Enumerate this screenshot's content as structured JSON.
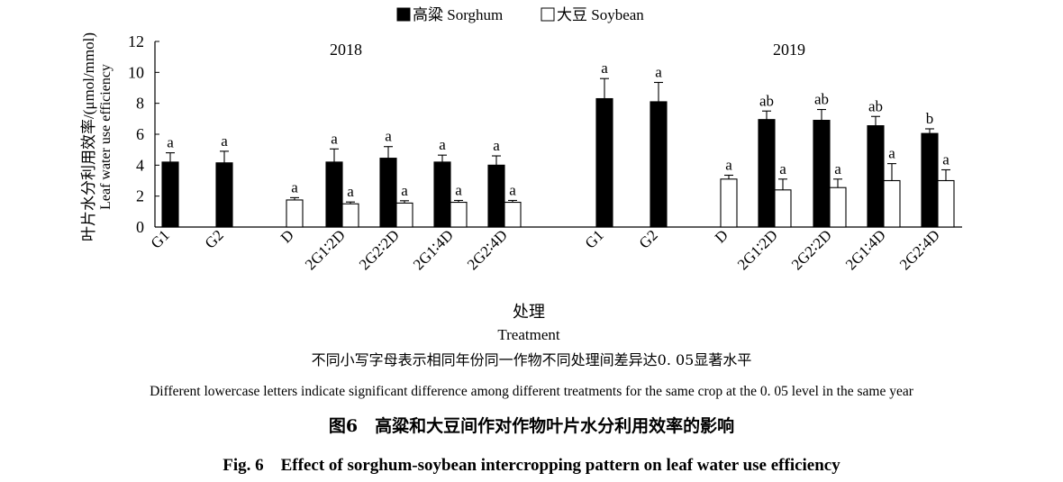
{
  "chart_data": {
    "type": "bar",
    "legend": {
      "position": "top-center",
      "items": [
        {
          "name": "高粱 Sorghum",
          "color": "#000000"
        },
        {
          "name": "大豆 Soybean",
          "color": "#ffffff"
        }
      ]
    },
    "ylabel_cn": "叶片水分利用效率/(μmol/mmol)",
    "ylabel_en": "Leaf water use efficiency",
    "xlabel_cn": "处理",
    "xlabel_en": "Treatment",
    "ylim": [
      0,
      12
    ],
    "yticks": [
      "0",
      "2",
      "4",
      "6",
      "8",
      "10",
      "12"
    ],
    "grid": false,
    "panels": [
      {
        "year": "2018",
        "groups": [
          {
            "label": "G1",
            "sorghum": {
              "value": 4.2,
              "err": 0.6,
              "letter": "a"
            },
            "soybean": null
          },
          {
            "label": "G2",
            "sorghum": {
              "value": 4.15,
              "err": 0.75,
              "letter": "a"
            },
            "soybean": null
          },
          {
            "label": "D",
            "sorghum": null,
            "soybean": {
              "value": 1.75,
              "err": 0.15,
              "letter": "a"
            }
          },
          {
            "label": "2G1∶2D",
            "sorghum": {
              "value": 4.2,
              "err": 0.85,
              "letter": "a"
            },
            "soybean": {
              "value": 1.5,
              "err": 0.12,
              "letter": "a"
            }
          },
          {
            "label": "2G2∶2D",
            "sorghum": {
              "value": 4.45,
              "err": 0.75,
              "letter": "a"
            },
            "soybean": {
              "value": 1.55,
              "err": 0.15,
              "letter": "a"
            }
          },
          {
            "label": "2G1∶4D",
            "sorghum": {
              "value": 4.2,
              "err": 0.45,
              "letter": "a"
            },
            "soybean": {
              "value": 1.6,
              "err": 0.12,
              "letter": "a"
            }
          },
          {
            "label": "2G2∶4D",
            "sorghum": {
              "value": 4.0,
              "err": 0.6,
              "letter": "a"
            },
            "soybean": {
              "value": 1.6,
              "err": 0.12,
              "letter": "a"
            }
          }
        ]
      },
      {
        "year": "2019",
        "groups": [
          {
            "label": "G1",
            "sorghum": {
              "value": 8.3,
              "err": 1.3,
              "letter": "a"
            },
            "soybean": null
          },
          {
            "label": "G2",
            "sorghum": {
              "value": 8.1,
              "err": 1.25,
              "letter": "a"
            },
            "soybean": null
          },
          {
            "label": "D",
            "sorghum": null,
            "soybean": {
              "value": 3.1,
              "err": 0.25,
              "letter": "a"
            }
          },
          {
            "label": "2G1∶2D",
            "sorghum": {
              "value": 6.95,
              "err": 0.55,
              "letter": "ab"
            },
            "soybean": {
              "value": 2.4,
              "err": 0.7,
              "letter": "a"
            }
          },
          {
            "label": "2G2∶2D",
            "sorghum": {
              "value": 6.9,
              "err": 0.7,
              "letter": "ab"
            },
            "soybean": {
              "value": 2.55,
              "err": 0.55,
              "letter": "a"
            }
          },
          {
            "label": "2G1∶4D",
            "sorghum": {
              "value": 6.55,
              "err": 0.6,
              "letter": "ab"
            },
            "soybean": {
              "value": 3.0,
              "err": 1.1,
              "letter": "a"
            }
          },
          {
            "label": "2G2∶4D",
            "sorghum": {
              "value": 6.05,
              "err": 0.3,
              "letter": "b"
            },
            "soybean": {
              "value": 3.0,
              "err": 0.7,
              "letter": "a"
            }
          }
        ]
      }
    ]
  },
  "footnote_cn": "不同小写字母表示相同年份同一作物不同处理间差异达0. 05显著水平",
  "footnote_en": "Different lowercase letters indicate significant difference among different treatments for the same crop at the 0. 05 level in the same year",
  "figure_title_cn": "图6　高粱和大豆间作对作物叶片水分利用效率的影响",
  "figure_title_en": "Fig. 6　Effect of sorghum-soybean intercropping pattern on leaf water use efficiency"
}
